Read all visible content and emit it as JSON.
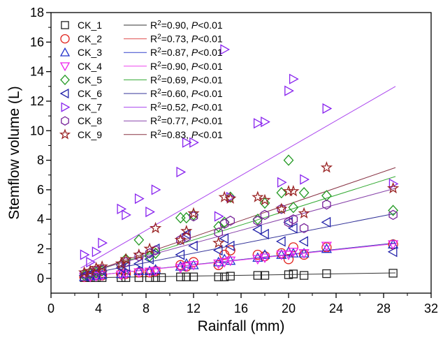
{
  "chart_data": {
    "type": "scatter",
    "xlabel": "Rainfall (mm)",
    "ylabel": "Stemflow volume (L)",
    "xlim": [
      0,
      32
    ],
    "ylim": [
      -1,
      18
    ],
    "xticks": [
      0,
      4,
      8,
      12,
      16,
      20,
      24,
      28,
      32
    ],
    "yticks": [
      0,
      2,
      4,
      6,
      8,
      10,
      12,
      14,
      16,
      18
    ],
    "grid": false,
    "legend_position": "top-left",
    "series": [
      {
        "name": "CK_1",
        "marker": "square",
        "color": "#222222",
        "line_color": "#333333",
        "fit": "R²=0.90, P<0.01",
        "fit_range": [
          2.5,
          29
        ],
        "fit_y": [
          0.04,
          0.37
        ],
        "points": [
          [
            2.8,
            0.05
          ],
          [
            3.3,
            0.05
          ],
          [
            3.8,
            0.05
          ],
          [
            4.3,
            0.05
          ],
          [
            5.9,
            0.05
          ],
          [
            6.3,
            0.05
          ],
          [
            7.4,
            0.05
          ],
          [
            8.3,
            0.05
          ],
          [
            8.8,
            0.05
          ],
          [
            9.3,
            0.05
          ],
          [
            10.9,
            0.1
          ],
          [
            11.4,
            0.1
          ],
          [
            12.0,
            0.1
          ],
          [
            14.1,
            0.1
          ],
          [
            14.6,
            0.1
          ],
          [
            15.1,
            0.15
          ],
          [
            17.4,
            0.2
          ],
          [
            18.0,
            0.2
          ],
          [
            20.0,
            0.25
          ],
          [
            20.4,
            0.3
          ],
          [
            21.3,
            0.2
          ],
          [
            23.2,
            0.32
          ],
          [
            28.8,
            0.35
          ]
        ]
      },
      {
        "name": "CK_2",
        "marker": "circle",
        "color": "#e0201a",
        "line_color": "#e05050",
        "fit": "R²=0.73, P<0.01",
        "fit_range": [
          2.5,
          29
        ],
        "fit_y": [
          0.1,
          2.4
        ],
        "points": [
          [
            2.8,
            0.1
          ],
          [
            3.3,
            0.15
          ],
          [
            3.8,
            0.2
          ],
          [
            4.3,
            0.2
          ],
          [
            5.9,
            0.3
          ],
          [
            6.3,
            0.3
          ],
          [
            7.4,
            0.4
          ],
          [
            8.3,
            0.4
          ],
          [
            8.8,
            0.5
          ],
          [
            10.9,
            0.9
          ],
          [
            11.4,
            0.8
          ],
          [
            12.0,
            1.1
          ],
          [
            14.1,
            0.9
          ],
          [
            14.6,
            1.6
          ],
          [
            15.1,
            1.9
          ],
          [
            17.4,
            1.6
          ],
          [
            18.0,
            1.5
          ],
          [
            19.4,
            1.7
          ],
          [
            20.0,
            1.3
          ],
          [
            20.4,
            2.1
          ],
          [
            21.3,
            1.6
          ],
          [
            23.2,
            2.1
          ],
          [
            28.8,
            2.3
          ]
        ]
      },
      {
        "name": "CK_3",
        "marker": "triangle-up",
        "color": "#2233cc",
        "line_color": "#3344cc",
        "fit": "R²=0.87, P<0.01",
        "fit_range": [
          2.5,
          29
        ],
        "fit_y": [
          0.1,
          2.4
        ],
        "points": [
          [
            2.8,
            0.1
          ],
          [
            3.3,
            0.15
          ],
          [
            3.8,
            0.2
          ],
          [
            4.3,
            0.25
          ],
          [
            5.9,
            0.3
          ],
          [
            6.3,
            0.35
          ],
          [
            7.4,
            0.5
          ],
          [
            8.3,
            0.5
          ],
          [
            8.8,
            0.6
          ],
          [
            10.9,
            0.8
          ],
          [
            11.4,
            1.0
          ],
          [
            12.0,
            0.9
          ],
          [
            14.1,
            1.1
          ],
          [
            14.6,
            1.3
          ],
          [
            15.1,
            1.2
          ],
          [
            17.4,
            1.4
          ],
          [
            18.0,
            1.6
          ],
          [
            19.4,
            1.6
          ],
          [
            20.0,
            1.8
          ],
          [
            20.4,
            1.7
          ],
          [
            21.3,
            1.7
          ],
          [
            23.2,
            2.0
          ],
          [
            28.8,
            2.3
          ]
        ]
      },
      {
        "name": "CK_4",
        "marker": "triangle-down",
        "color": "#ee22ee",
        "line_color": "#ee44ee",
        "fit": "R²=0.90, P<0.01",
        "fit_range": [
          2.5,
          29
        ],
        "fit_y": [
          0.1,
          2.35
        ],
        "points": [
          [
            2.8,
            0.1
          ],
          [
            3.3,
            0.1
          ],
          [
            3.8,
            0.15
          ],
          [
            4.3,
            0.2
          ],
          [
            5.9,
            0.25
          ],
          [
            6.3,
            0.3
          ],
          [
            7.4,
            0.4
          ],
          [
            8.3,
            0.45
          ],
          [
            8.8,
            0.5
          ],
          [
            10.9,
            0.7
          ],
          [
            11.4,
            0.8
          ],
          [
            12.0,
            0.9
          ],
          [
            14.1,
            1.0
          ],
          [
            14.6,
            1.1
          ],
          [
            15.1,
            1.2
          ],
          [
            17.4,
            1.3
          ],
          [
            18.0,
            1.4
          ],
          [
            19.4,
            1.6
          ],
          [
            20.0,
            1.6
          ],
          [
            20.4,
            1.8
          ],
          [
            21.3,
            1.7
          ],
          [
            23.2,
            2.2
          ],
          [
            28.8,
            2.3
          ]
        ]
      },
      {
        "name": "CK_5",
        "marker": "diamond",
        "color": "#229922",
        "line_color": "#33aa33",
        "fit": "R²=0.69, P<0.01",
        "fit_range": [
          2.5,
          29
        ],
        "fit_y": [
          0.2,
          6.9
        ],
        "points": [
          [
            2.8,
            0.2
          ],
          [
            3.3,
            0.3
          ],
          [
            3.8,
            0.4
          ],
          [
            4.3,
            0.5
          ],
          [
            5.9,
            0.9
          ],
          [
            6.3,
            1.3
          ],
          [
            7.4,
            2.6
          ],
          [
            8.3,
            1.5
          ],
          [
            8.8,
            1.7
          ],
          [
            10.9,
            4.1
          ],
          [
            11.4,
            4.1
          ],
          [
            12.0,
            4.3
          ],
          [
            14.1,
            3.5
          ],
          [
            14.6,
            3.8
          ],
          [
            15.1,
            5.5
          ],
          [
            17.4,
            4.0
          ],
          [
            18.0,
            5.1
          ],
          [
            19.4,
            5.8
          ],
          [
            20.0,
            8.0
          ],
          [
            20.4,
            4.8
          ],
          [
            21.3,
            5.8
          ],
          [
            23.2,
            5.6
          ],
          [
            28.8,
            4.6
          ]
        ]
      },
      {
        "name": "CK_6",
        "marker": "triangle-left",
        "color": "#2222aa",
        "line_color": "#333399",
        "fit": "R²=0.60, P<0.01",
        "fit_range": [
          2.5,
          29
        ],
        "fit_y": [
          0.2,
          4.4
        ],
        "points": [
          [
            2.8,
            0.2
          ],
          [
            3.3,
            0.3
          ],
          [
            3.8,
            0.4
          ],
          [
            4.3,
            0.5
          ],
          [
            5.9,
            0.7
          ],
          [
            6.3,
            0.8
          ],
          [
            7.4,
            1.0
          ],
          [
            8.3,
            1.3
          ],
          [
            8.8,
            2.0
          ],
          [
            10.9,
            1.6
          ],
          [
            11.4,
            3.0
          ],
          [
            12.0,
            2.2
          ],
          [
            14.1,
            1.9
          ],
          [
            14.6,
            2.7
          ],
          [
            15.1,
            2.2
          ],
          [
            17.4,
            3.3
          ],
          [
            18.0,
            3.0
          ],
          [
            19.4,
            2.5
          ],
          [
            20.0,
            3.8
          ],
          [
            20.4,
            3.4
          ],
          [
            21.3,
            2.5
          ],
          [
            23.2,
            3.8
          ],
          [
            28.8,
            1.8
          ]
        ]
      },
      {
        "name": "CK_7",
        "marker": "triangle-right",
        "color": "#8822ee",
        "line_color": "#aa44ee",
        "fit": "R²=0.52, P<0.01",
        "fit_range": [
          2.5,
          29
        ],
        "fit_y": [
          0.7,
          13.0
        ],
        "points": [
          [
            2.8,
            1.6
          ],
          [
            3.3,
            1.1
          ],
          [
            3.8,
            1.8
          ],
          [
            4.3,
            2.4
          ],
          [
            5.9,
            4.7
          ],
          [
            6.3,
            4.3
          ],
          [
            7.4,
            5.4
          ],
          [
            8.3,
            4.5
          ],
          [
            8.8,
            6.0
          ],
          [
            10.9,
            7.2
          ],
          [
            11.4,
            9.2
          ],
          [
            12.0,
            9.2
          ],
          [
            14.1,
            4.2
          ],
          [
            14.6,
            15.5
          ],
          [
            15.1,
            5.5
          ],
          [
            17.4,
            10.5
          ],
          [
            18.0,
            10.6
          ],
          [
            19.4,
            6.5
          ],
          [
            20.0,
            12.7
          ],
          [
            20.4,
            13.5
          ],
          [
            21.3,
            6.7
          ],
          [
            23.2,
            11.5
          ],
          [
            28.8,
            6.4
          ]
        ]
      },
      {
        "name": "CK_8",
        "marker": "hexagon",
        "color": "#772299",
        "line_color": "#8844aa",
        "fit": "R²=0.77, P<0.01",
        "fit_range": [
          2.5,
          29
        ],
        "fit_y": [
          0.3,
          6.1
        ],
        "points": [
          [
            2.8,
            0.3
          ],
          [
            3.3,
            0.4
          ],
          [
            3.8,
            0.5
          ],
          [
            4.3,
            0.6
          ],
          [
            5.9,
            0.9
          ],
          [
            6.3,
            1.1
          ],
          [
            7.4,
            1.5
          ],
          [
            8.3,
            1.7
          ],
          [
            8.8,
            1.9
          ],
          [
            10.9,
            2.6
          ],
          [
            11.4,
            2.8
          ],
          [
            12.0,
            4.2
          ],
          [
            14.1,
            3.1
          ],
          [
            14.6,
            3.7
          ],
          [
            15.1,
            3.9
          ],
          [
            17.4,
            3.9
          ],
          [
            18.0,
            4.3
          ],
          [
            19.4,
            4.7
          ],
          [
            20.0,
            3.8
          ],
          [
            20.4,
            4.0
          ],
          [
            21.3,
            3.4
          ],
          [
            23.2,
            5.0
          ],
          [
            28.8,
            4.3
          ]
        ]
      },
      {
        "name": "CK_9",
        "marker": "star",
        "color": "#992222",
        "line_color": "#883344",
        "fit": "R²=0.83, P<0.01",
        "fit_range": [
          2.5,
          29
        ],
        "fit_y": [
          0.2,
          7.5
        ],
        "points": [
          [
            2.8,
            0.4
          ],
          [
            3.3,
            0.5
          ],
          [
            3.8,
            0.7
          ],
          [
            4.3,
            0.8
          ],
          [
            5.9,
            1.0
          ],
          [
            6.3,
            1.3
          ],
          [
            7.4,
            1.6
          ],
          [
            8.3,
            2.0
          ],
          [
            8.8,
            3.4
          ],
          [
            10.9,
            2.6
          ],
          [
            11.4,
            3.2
          ],
          [
            12.0,
            4.4
          ],
          [
            14.1,
            2.4
          ],
          [
            14.6,
            5.5
          ],
          [
            15.1,
            5.4
          ],
          [
            17.4,
            5.5
          ],
          [
            18.0,
            5.3
          ],
          [
            19.4,
            4.7
          ],
          [
            20.0,
            5.9
          ],
          [
            20.4,
            5.9
          ],
          [
            21.3,
            4.4
          ],
          [
            23.2,
            7.5
          ],
          [
            28.8,
            6.1
          ]
        ]
      }
    ]
  }
}
